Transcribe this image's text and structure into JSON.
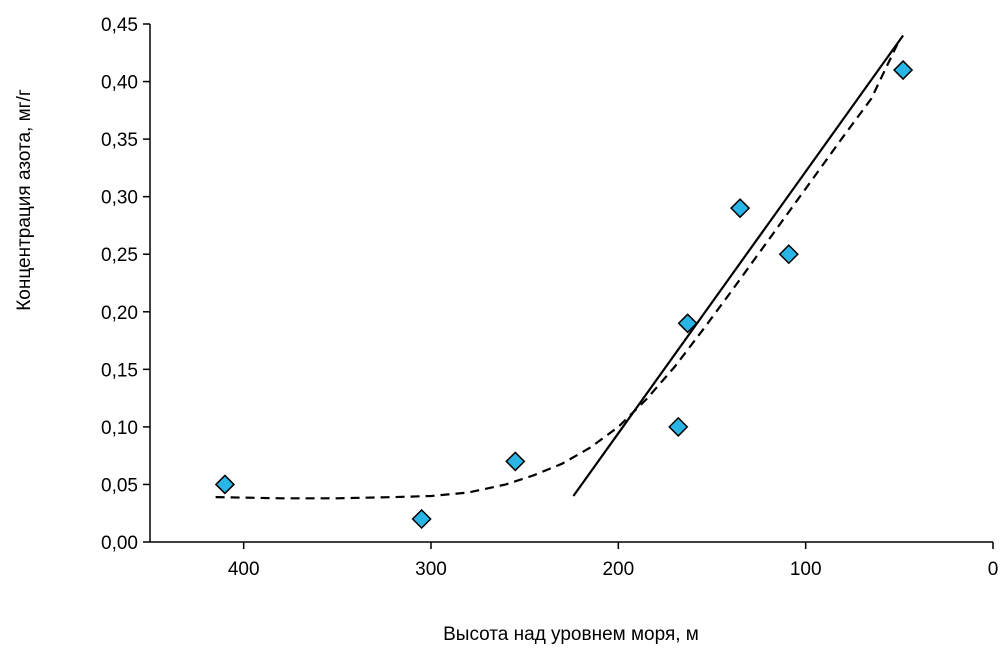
{
  "chart_data": {
    "type": "scatter",
    "title": "",
    "xlabel": "Высота над уровнем моря,  м",
    "ylabel": "Концентрация азота,  мг/г",
    "xlim": [
      450,
      0
    ],
    "ylim": [
      0,
      0.45
    ],
    "x_reversed": true,
    "grid": false,
    "legend": "none",
    "x_ticks": [
      400,
      300,
      200,
      100,
      0
    ],
    "y_ticks": [
      0,
      0.05,
      0.1,
      0.15,
      0.2,
      0.25,
      0.3,
      0.35,
      0.4,
      0.45
    ],
    "x_tick_labels": [
      "400",
      "300",
      "200",
      "100",
      "0"
    ],
    "y_tick_labels": [
      "0,00",
      "0,05",
      "0,10",
      "0,15",
      "0,20",
      "0,25",
      "0,30",
      "0,35",
      "0,40",
      "0,45"
    ],
    "series": [
      {
        "kind": "points",
        "marker": "diamond",
        "color": "#29b6e6",
        "x": [
          410,
          305,
          255,
          168,
          163,
          135,
          109,
          48
        ],
        "y": [
          0.05,
          0.02,
          0.07,
          0.1,
          0.19,
          0.29,
          0.25,
          0.41
        ]
      },
      {
        "kind": "trend-solid",
        "color": "#000000",
        "x": [
          224,
          48
        ],
        "y": [
          0.04,
          0.44
        ]
      },
      {
        "kind": "trend-dashed",
        "color": "#000000",
        "x": [
          415,
          380,
          350,
          320,
          300,
          280,
          260,
          245,
          230,
          215,
          200,
          185,
          170,
          155,
          140,
          120,
          100,
          80,
          65,
          50
        ],
        "y": [
          0.039,
          0.038,
          0.038,
          0.039,
          0.04,
          0.043,
          0.05,
          0.058,
          0.068,
          0.082,
          0.1,
          0.124,
          0.152,
          0.184,
          0.217,
          0.262,
          0.307,
          0.352,
          0.385,
          0.436
        ]
      }
    ]
  }
}
